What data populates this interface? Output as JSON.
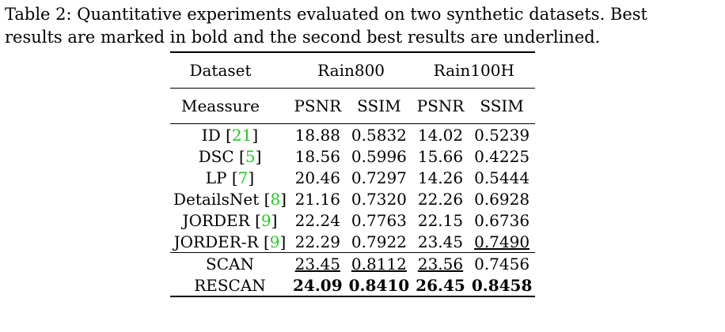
{
  "caption": {
    "line1": "Table 2: Quantitative experiments evaluated on two synthetic datasets. Best",
    "line2": "results are marked in bold and the second best results are underlined."
  },
  "header": {
    "dataset": "Dataset",
    "rain800": "Rain800",
    "rain100h": "Rain100H",
    "measure": "Meassure",
    "psnr": "PSNR",
    "ssim": "SSIM"
  },
  "rows": [
    {
      "name": "ID ",
      "cite": "21",
      "v": [
        "18.88",
        "0.5832",
        "14.02",
        "0.5239"
      ]
    },
    {
      "name": "DSC ",
      "cite": "5",
      "v": [
        "18.56",
        "0.5996",
        "15.66",
        "0.4225"
      ]
    },
    {
      "name": "LP ",
      "cite": "7",
      "v": [
        "20.46",
        "0.7297",
        "14.26",
        "0.5444"
      ]
    },
    {
      "name": "DetailsNet ",
      "cite": "8",
      "v": [
        "21.16",
        "0.7320",
        "22.26",
        "0.6928"
      ]
    },
    {
      "name": "JORDER ",
      "cite": "9",
      "v": [
        "22.24",
        "0.7763",
        "22.15",
        "0.6736"
      ]
    },
    {
      "name": "JORDER-R ",
      "cite": "9",
      "v": [
        "22.29",
        "0.7922",
        "23.45",
        "0.7490"
      ]
    }
  ],
  "ours": [
    {
      "name": "SCAN",
      "v": [
        "23.45",
        "0.8112",
        "23.56",
        "0.7456"
      ]
    },
    {
      "name": "RESCAN",
      "v": [
        "24.09",
        "0.8410",
        "26.45",
        "0.8458"
      ]
    }
  ],
  "colors": {
    "citation": "#22cc22"
  }
}
